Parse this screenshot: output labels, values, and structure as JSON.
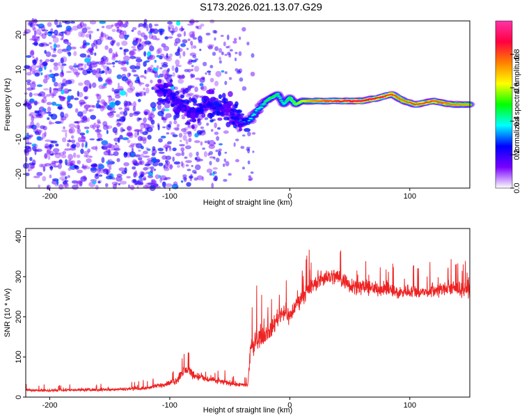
{
  "title": "S173.2026.021.13.07.G29",
  "chart_data": [
    {
      "type": "heatmap",
      "name": "spectrogram",
      "xlabel": "Height of straight line (km)",
      "ylabel": "Frequency (Hz)",
      "xlim": [
        -220,
        150
      ],
      "ylim": [
        -24,
        24
      ],
      "xticks": [
        -200,
        -100,
        0,
        100
      ],
      "yticks": [
        -20,
        -10,
        0,
        10,
        20
      ],
      "colorbar": {
        "label": "Normalized spectral amplitude",
        "range": [
          0.0,
          1.0
        ],
        "ticks": [
          0.0,
          0.2,
          0.4,
          0.6,
          0.8
        ],
        "colors": [
          "#ffffff",
          "#7a00ff",
          "#0000ff",
          "#00ffff",
          "#00ff00",
          "#ffff00",
          "#ff8000",
          "#ff0040",
          "#ff33aa"
        ]
      },
      "ridge": {
        "description": "dominant frequency track (Hz) vs height (km)",
        "x": [
          -110,
          -100,
          -90,
          -80,
          -70,
          -60,
          -50,
          -42,
          -35,
          -30,
          -25,
          -20,
          -15,
          -10,
          -5,
          0,
          5,
          10,
          20,
          40,
          60,
          75,
          85,
          95,
          105,
          120,
          135,
          150
        ],
        "y": [
          5,
          3,
          0,
          -3,
          0,
          -1,
          -2,
          -5,
          -5,
          -3,
          -1,
          1,
          2,
          3,
          0,
          2,
          0,
          1,
          1,
          1,
          1,
          2,
          3,
          1,
          0,
          1,
          0,
          0
        ],
        "amplitude": [
          0.15,
          0.2,
          0.25,
          0.2,
          0.2,
          0.2,
          0.2,
          0.3,
          0.35,
          0.4,
          0.4,
          0.45,
          0.5,
          0.45,
          0.4,
          0.5,
          0.55,
          0.6,
          0.75,
          0.85,
          0.9,
          0.85,
          0.8,
          0.75,
          0.8,
          0.8,
          0.75,
          0.7
        ]
      },
      "noise_region": {
        "x_from": -220,
        "x_to": -100,
        "level": 0.1
      }
    },
    {
      "type": "line",
      "name": "snr",
      "xlabel": "Height of straight line (km)",
      "ylabel": "SNR (10 * v/v)",
      "xlim": [
        -220,
        150
      ],
      "ylim": [
        0,
        420
      ],
      "xticks": [
        -200,
        -100,
        0,
        100
      ],
      "yticks": [
        0,
        100,
        200,
        300,
        400
      ],
      "color": "#ee2222",
      "series": [
        {
          "name": "SNR",
          "x": [
            -220,
            -200,
            -180,
            -160,
            -140,
            -120,
            -110,
            -100,
            -95,
            -90,
            -85,
            -80,
            -70,
            -60,
            -50,
            -40,
            -35,
            -32,
            -30,
            -28,
            -25,
            -20,
            -15,
            -10,
            -5,
            0,
            5,
            10,
            15,
            20,
            30,
            40,
            50,
            60,
            70,
            80,
            90,
            100,
            110,
            120,
            130,
            140,
            150
          ],
          "y": [
            18,
            16,
            18,
            18,
            20,
            22,
            28,
            35,
            40,
            60,
            70,
            55,
            45,
            40,
            35,
            30,
            30,
            140,
            110,
            150,
            150,
            160,
            170,
            200,
            215,
            200,
            230,
            250,
            265,
            280,
            300,
            300,
            280,
            275,
            270,
            270,
            260,
            265,
            260,
            265,
            270,
            270,
            265
          ],
          "spread": [
            10,
            10,
            10,
            10,
            10,
            12,
            15,
            18,
            25,
            40,
            40,
            30,
            25,
            20,
            18,
            15,
            15,
            60,
            60,
            70,
            70,
            60,
            60,
            65,
            60,
            60,
            55,
            55,
            55,
            50,
            55,
            60,
            55,
            50,
            45,
            45,
            45,
            45,
            40,
            45,
            45,
            45,
            45
          ]
        }
      ]
    }
  ]
}
